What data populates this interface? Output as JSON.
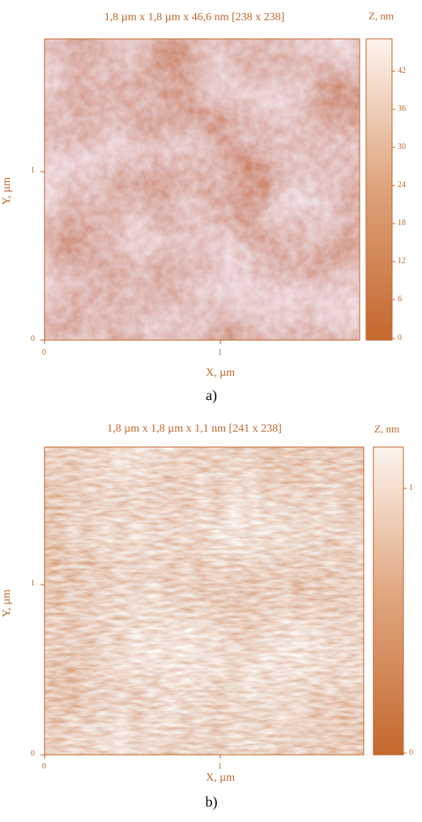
{
  "colors": {
    "axis": "#c0662a",
    "dark": "#c4682e",
    "mid": "#dea27a",
    "light": "#fbefe6"
  },
  "panels": [
    {
      "title": "1,8 µm x 1,8 µm x 46,6 nm [238 x 238]",
      "z_label": "Z, nm",
      "colorbar_ticks": [
        "42",
        "36",
        "30",
        "24",
        "18",
        "12",
        "6",
        "0"
      ],
      "x_ticks": [
        "0",
        "1"
      ],
      "y_ticks": [
        "1",
        "0"
      ],
      "x_title": "X, µm",
      "y_title": "Y, µm",
      "caption": "a)"
    },
    {
      "title": "1,8 µm x 1,8 µm x 1,1 nm [241 x 238]",
      "z_label": "Z, nm",
      "colorbar_ticks": [
        "1",
        "0"
      ],
      "x_ticks": [
        "0",
        "1"
      ],
      "y_ticks": [
        "1",
        "0"
      ],
      "x_title": "X, µm",
      "y_title": "Y, µm",
      "caption": "b)"
    }
  ]
}
